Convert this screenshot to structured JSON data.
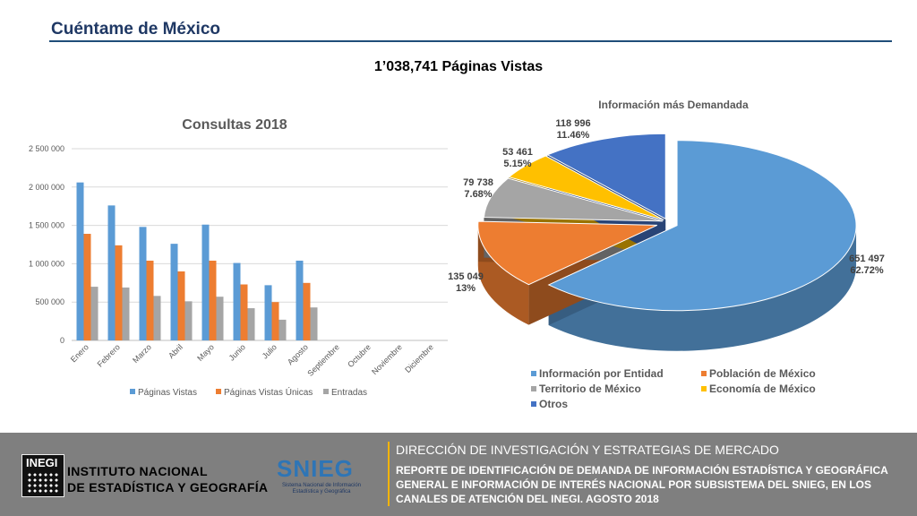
{
  "header": {
    "title": "Cuéntame de México",
    "headline": "1’038,741  Páginas Vistas"
  },
  "chart_data": [
    {
      "type": "bar",
      "title": "Consultas 2018",
      "categories": [
        "Enero",
        "Febrero",
        "Marzo",
        "Abril",
        "Mayo",
        "Junio",
        "Julio",
        "Agosto",
        "Septiembre",
        "Octubre",
        "Noviembre",
        "Diciembre"
      ],
      "yticks": [
        "0",
        "500 000",
        "1 000 000",
        "1 500 000",
        "2 000 000",
        "2 500 000"
      ],
      "ylim": [
        0,
        2500000
      ],
      "grid": true,
      "legend_position": "bottom",
      "series": [
        {
          "name": "Páginas Vistas",
          "color": "#5b9bd5",
          "values": [
            2060000,
            1760000,
            1480000,
            1260000,
            1510000,
            1010000,
            720000,
            1040000,
            null,
            null,
            null,
            null
          ]
        },
        {
          "name": "Páginas Vistas Únicas",
          "color": "#ed7d31",
          "values": [
            1390000,
            1240000,
            1040000,
            900000,
            1040000,
            730000,
            500000,
            750000,
            null,
            null,
            null,
            null
          ]
        },
        {
          "name": "Entradas",
          "color": "#a5a5a5",
          "values": [
            700000,
            690000,
            580000,
            510000,
            570000,
            420000,
            270000,
            430000,
            null,
            null,
            null,
            null
          ]
        }
      ]
    },
    {
      "type": "pie",
      "title": "Información más Demandada",
      "legend_position": "bottom",
      "slices": [
        {
          "name": "Información por Entidad",
          "value": 651497,
          "value_label": "651 497",
          "percent_label": "62.72%",
          "color": "#5b9bd5"
        },
        {
          "name": "Población de México",
          "value": 135049,
          "value_label": "135 049",
          "percent_label": "13%",
          "color": "#ed7d31"
        },
        {
          "name": "Territorio de México",
          "value": 79738,
          "value_label": "79 738",
          "percent_label": "7.68%",
          "color": "#a5a5a5"
        },
        {
          "name": "Economía de México",
          "value": 53461,
          "value_label": "53 461",
          "percent_label": "5.15%",
          "color": "#ffc000"
        },
        {
          "name": "Otros",
          "value": 118996,
          "value_label": "118 996",
          "percent_label": "11.46%",
          "color": "#4472c4"
        }
      ]
    }
  ],
  "footer": {
    "logo_text": "INEGI",
    "institute_line1": "INSTITUTO NACIONAL",
    "institute_line2": "DE ESTADÍSTICA Y GEOGRAFÍA",
    "snieg_logo": "SNIEG",
    "snieg_subtitle": "Sistema Nacional de Información Estadística y Geográfica",
    "direction": "DIRECCIÓN DE INVESTIGACIÓN Y ESTRATEGIAS DE MERCADO",
    "report": "REPORTE DE IDENTIFICACIÓN DE DEMANDA DE INFORMACIÓN ESTADÍSTICA Y GEOGRÁFICA GENERAL E INFORMACIÓN DE INTERÉS NACIONAL POR SUBSISTEMA DEL SNIEG, EN LOS CANALES DE ATENCIÓN DEL INEGI. AGOSTO 2018"
  }
}
